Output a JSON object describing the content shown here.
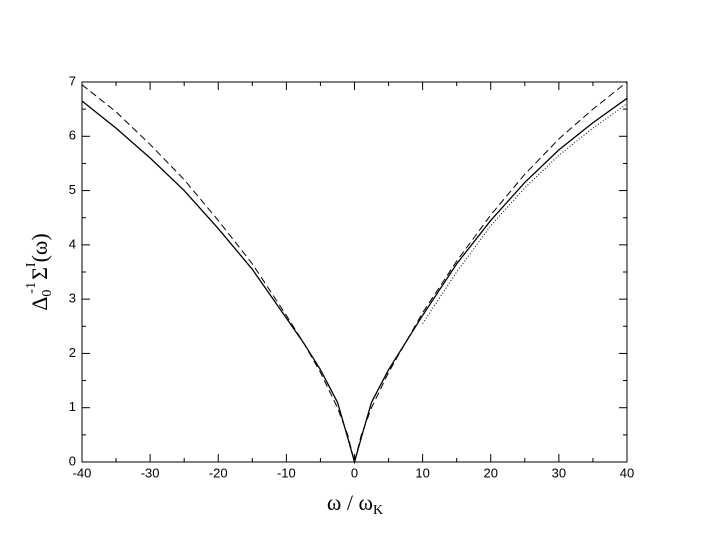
{
  "chart_data": {
    "type": "line",
    "xlabel": [
      "ω / ω",
      "K"
    ],
    "ylabel": [
      "Δ",
      "0",
      "-1",
      "Σ",
      "I",
      "(ω)"
    ],
    "xlim": [
      -40,
      40
    ],
    "xticks": [
      -40,
      -30,
      -20,
      -10,
      0,
      10,
      20,
      30,
      40
    ],
    "xminorticks": [
      -35,
      -25,
      -15,
      -5,
      5,
      15,
      25,
      35
    ],
    "ylim": [
      0,
      7
    ],
    "yticks": [
      0,
      1,
      2,
      3,
      4,
      5,
      6,
      7
    ],
    "yminorticks": [
      0.5,
      1.5,
      2.5,
      3.5,
      4.5,
      5.5,
      6.5
    ],
    "series": [
      {
        "color": "#000000",
        "style": "solid",
        "x": [
          -40,
          -35,
          -30,
          -25,
          -20,
          -15,
          -10,
          -7.5,
          -5,
          -2.5,
          -1,
          0,
          1,
          2.5,
          5,
          7.5,
          10,
          15,
          20,
          25,
          30,
          35,
          40
        ],
        "values": [
          6.65,
          6.15,
          5.6,
          5.0,
          4.3,
          3.55,
          2.65,
          2.2,
          1.7,
          1.1,
          0.45,
          0,
          0.45,
          1.1,
          1.7,
          2.2,
          2.7,
          3.65,
          4.45,
          5.15,
          5.75,
          6.25,
          6.7
        ]
      },
      {
        "color": "#000000",
        "style": "dashed",
        "x": [
          -40,
          -35,
          -30,
          -25,
          -20,
          -15,
          -10,
          -7.5,
          -5,
          -2.5,
          -1,
          0,
          1,
          2.5,
          5,
          7.5,
          10,
          15,
          20,
          25,
          30,
          35,
          40
        ],
        "values": [
          6.95,
          6.45,
          5.85,
          5.2,
          4.45,
          3.65,
          2.7,
          2.2,
          1.65,
          1.0,
          0.5,
          0,
          0.5,
          1.0,
          1.65,
          2.2,
          2.75,
          3.7,
          4.55,
          5.3,
          5.95,
          6.5,
          7.0
        ]
      },
      {
        "color": "#000000",
        "style": "dotted",
        "x": [
          10,
          15,
          20,
          25,
          30,
          35,
          40
        ],
        "values": [
          2.55,
          3.5,
          4.35,
          5.05,
          5.65,
          6.15,
          6.6
        ]
      }
    ]
  }
}
